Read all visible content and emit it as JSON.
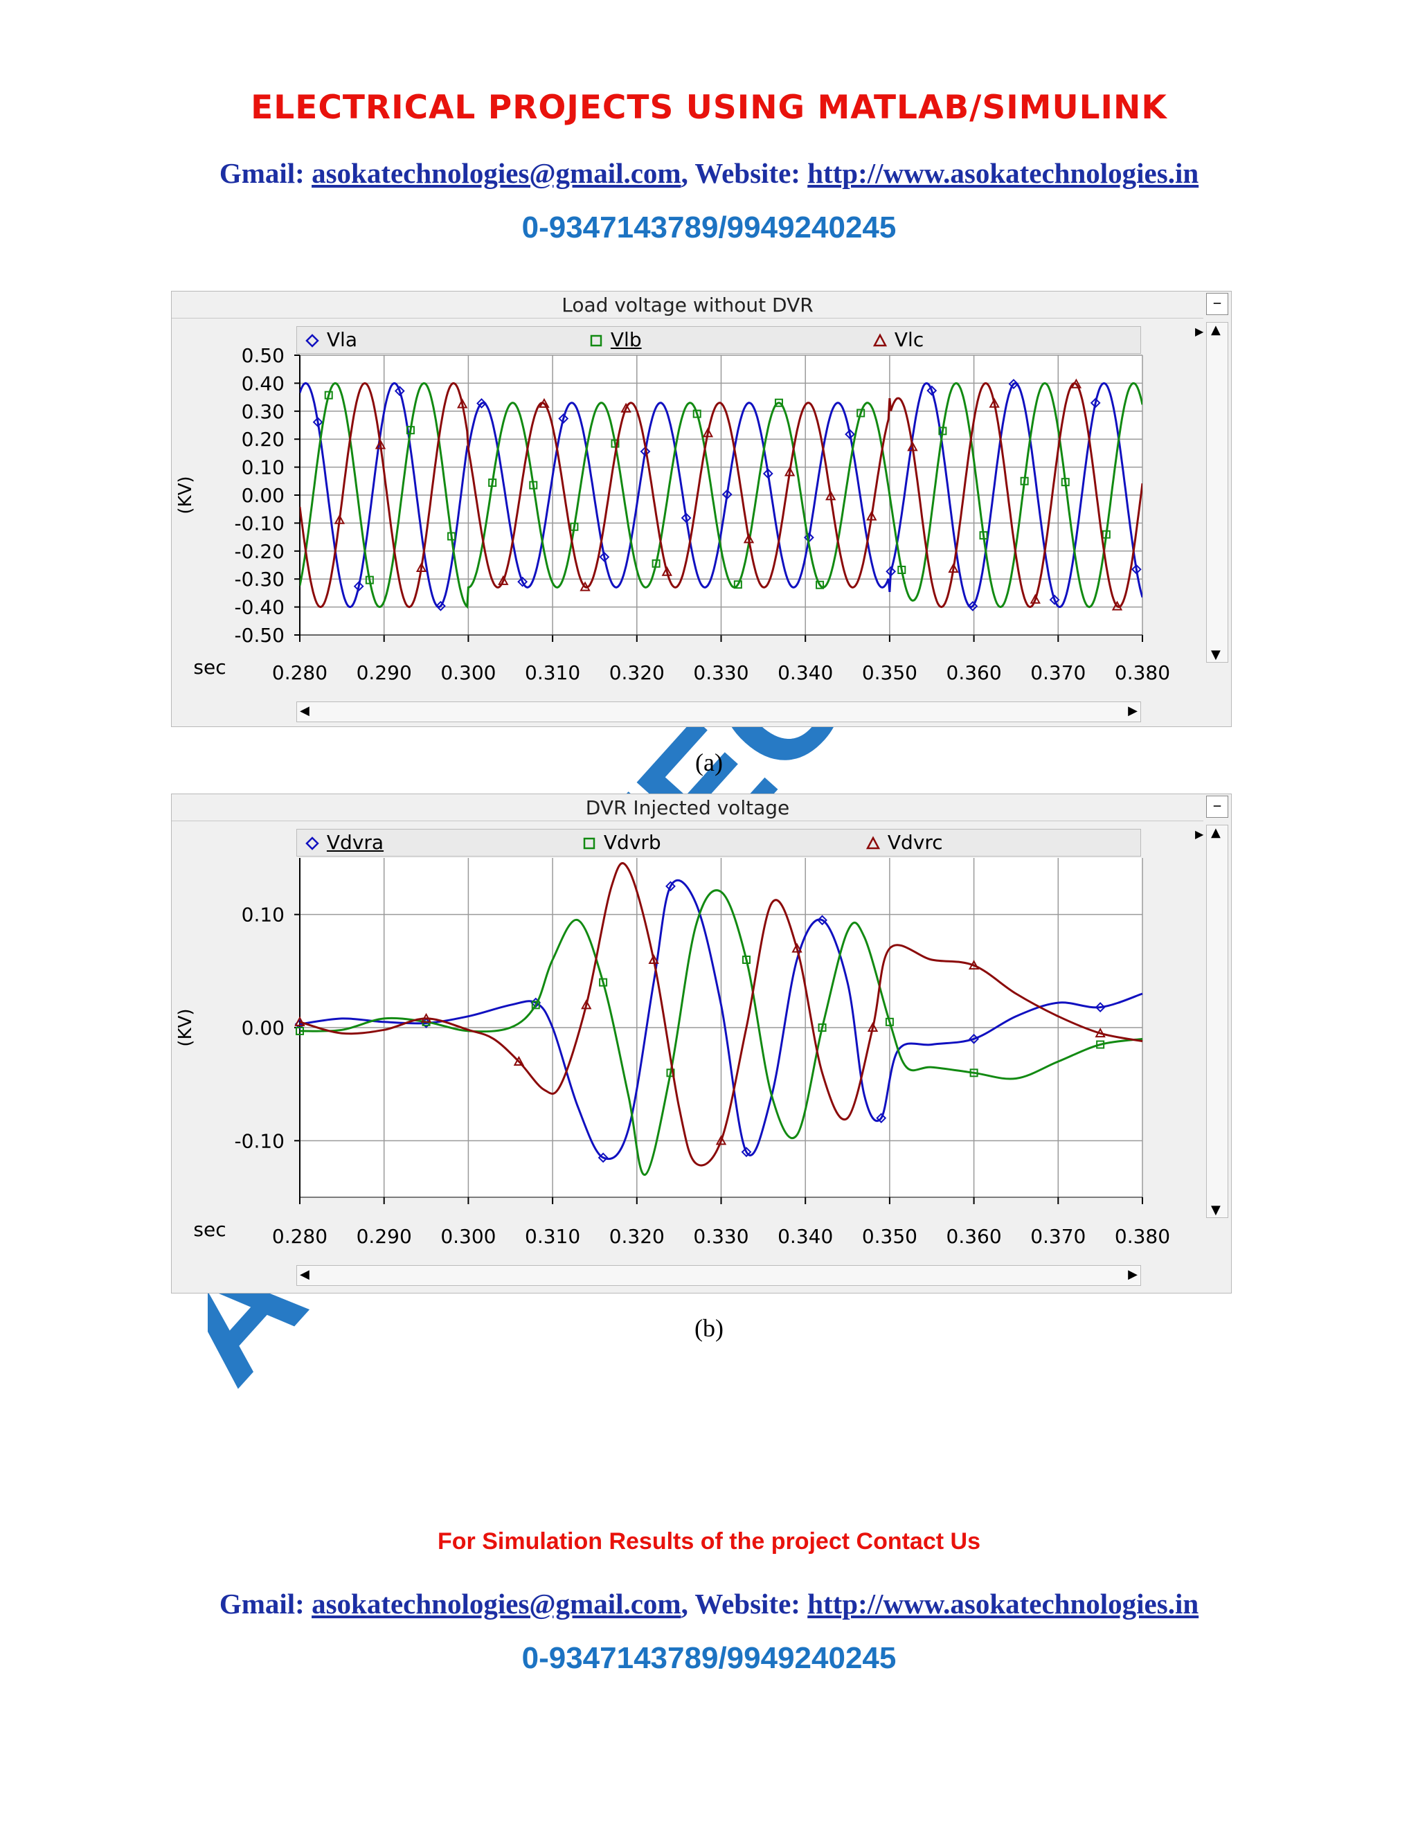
{
  "header": {
    "title": "Electrical Projects Using MATLAB/SIMULINK",
    "gmail_label": "Gmail: ",
    "email": "asokatechnologies@gmail.com",
    "website_label": ", Website: ",
    "website": "http://www.asokatechnologies.in",
    "phone": "0-9347143789/9949240245"
  },
  "watermark_text": "ASOKA TECHNOLOGIES",
  "colors": {
    "title_red": "#e8120c",
    "contact_blue": "#1c2fa3",
    "phone_blue": "#1c73c2",
    "series_a": "#1010c0",
    "series_b": "#128a12",
    "series_c": "#8b0a0a",
    "watermark": "#1c73c2"
  },
  "figures": [
    {
      "caption": "(a)",
      "scroll_left_icon": "arrow-left-icon",
      "scroll_right_icon": "arrow-right-icon"
    },
    {
      "caption": "(b)",
      "scroll_left_icon": "arrow-left-icon",
      "scroll_right_icon": "arrow-right-icon"
    }
  ],
  "footer": {
    "note": "For Simulation Results of the project Contact Us",
    "gmail_label": "Gmail: ",
    "email": "asokatechnologies@gmail.com",
    "website_label": ", Website: ",
    "website": "http://www.asokatechnologies.in",
    "phone": "0-9347143789/9949240245"
  },
  "chart_data": [
    {
      "type": "line",
      "title": "Load voltage without DVR",
      "xlabel": "sec",
      "ylabel": "(KV)",
      "xlim": [
        0.28,
        0.38
      ],
      "ylim": [
        -0.5,
        0.5
      ],
      "xticks": [
        "0.280",
        "0.290",
        "0.300",
        "0.310",
        "0.320",
        "0.330",
        "0.340",
        "0.350",
        "0.360",
        "0.370",
        "0.380"
      ],
      "yticks": [
        "0.50",
        "0.40",
        "0.30",
        "0.20",
        "0.10",
        "0.00",
        "-0.10",
        "-0.20",
        "-0.30",
        "-0.40",
        "-0.50"
      ],
      "grid": true,
      "legend_position": "top",
      "waveform": {
        "frequency_hz": 95,
        "phase_shift_deg": [
          0,
          -120,
          120
        ],
        "phase_a_offset_deg": 210,
        "sag_interval": [
          0.3,
          0.35
        ],
        "amplitude_normal": 0.4,
        "amplitude_sag": 0.33
      },
      "series": [
        {
          "name": "Vla",
          "marker": "diamond",
          "color": "#1010c0"
        },
        {
          "name": "Vlb",
          "marker": "square",
          "color": "#128a12"
        },
        {
          "name": "Vlc",
          "marker": "triangle",
          "color": "#8b0a0a"
        }
      ]
    },
    {
      "type": "line",
      "title": "DVR Injected voltage",
      "xlabel": "sec",
      "ylabel": "(KV)",
      "xlim": [
        0.28,
        0.38
      ],
      "ylim": [
        -0.15,
        0.15
      ],
      "xticks": [
        "0.280",
        "0.290",
        "0.300",
        "0.310",
        "0.320",
        "0.330",
        "0.340",
        "0.350",
        "0.360",
        "0.370",
        "0.380"
      ],
      "yticks": [
        "0.10",
        "0.00",
        "-0.10"
      ],
      "ytick_values": [
        0.1,
        0,
        -0.1
      ],
      "grid": true,
      "legend_position": "top",
      "series": [
        {
          "name": "Vdvra",
          "marker": "diamond",
          "color": "#1010c0",
          "x": [
            0.28,
            0.285,
            0.29,
            0.295,
            0.3,
            0.305,
            0.308,
            0.31,
            0.313,
            0.316,
            0.319,
            0.322,
            0.324,
            0.327,
            0.33,
            0.333,
            0.336,
            0.339,
            0.342,
            0.345,
            0.347,
            0.349,
            0.351,
            0.355,
            0.36,
            0.365,
            0.37,
            0.375,
            0.38
          ],
          "y": [
            0.003,
            0.008,
            0.005,
            0.004,
            0.01,
            0.02,
            0.022,
            0.0,
            -0.07,
            -0.115,
            -0.09,
            0.04,
            0.125,
            0.11,
            0.02,
            -0.11,
            -0.06,
            0.06,
            0.095,
            0.04,
            -0.06,
            -0.08,
            -0.02,
            -0.015,
            -0.01,
            0.01,
            0.022,
            0.018,
            0.03
          ]
        },
        {
          "name": "Vdvrb",
          "marker": "square",
          "color": "#128a12",
          "x": [
            0.28,
            0.285,
            0.29,
            0.295,
            0.3,
            0.305,
            0.308,
            0.31,
            0.313,
            0.316,
            0.319,
            0.321,
            0.324,
            0.327,
            0.33,
            0.333,
            0.336,
            0.339,
            0.342,
            0.345,
            0.347,
            0.35,
            0.352,
            0.355,
            0.36,
            0.365,
            0.37,
            0.375,
            0.38
          ],
          "y": [
            -0.003,
            -0.002,
            0.008,
            0.005,
            -0.003,
            0.0,
            0.02,
            0.06,
            0.095,
            0.04,
            -0.06,
            -0.13,
            -0.04,
            0.09,
            0.12,
            0.06,
            -0.06,
            -0.095,
            0.0,
            0.085,
            0.08,
            0.005,
            -0.035,
            -0.035,
            -0.04,
            -0.045,
            -0.03,
            -0.015,
            -0.01
          ]
        },
        {
          "name": "Vdvrc",
          "marker": "triangle",
          "color": "#8b0a0a",
          "x": [
            0.28,
            0.285,
            0.29,
            0.295,
            0.3,
            0.303,
            0.306,
            0.309,
            0.311,
            0.314,
            0.317,
            0.319,
            0.322,
            0.325,
            0.327,
            0.33,
            0.333,
            0.336,
            0.339,
            0.342,
            0.345,
            0.348,
            0.35,
            0.355,
            0.36,
            0.365,
            0.37,
            0.375,
            0.38
          ],
          "y": [
            0.005,
            -0.005,
            -0.002,
            0.008,
            -0.002,
            -0.01,
            -0.03,
            -0.055,
            -0.05,
            0.02,
            0.125,
            0.14,
            0.06,
            -0.07,
            -0.12,
            -0.1,
            0.0,
            0.11,
            0.07,
            -0.04,
            -0.08,
            0.0,
            0.07,
            0.06,
            0.055,
            0.03,
            0.01,
            -0.005,
            -0.012
          ]
        }
      ]
    }
  ]
}
